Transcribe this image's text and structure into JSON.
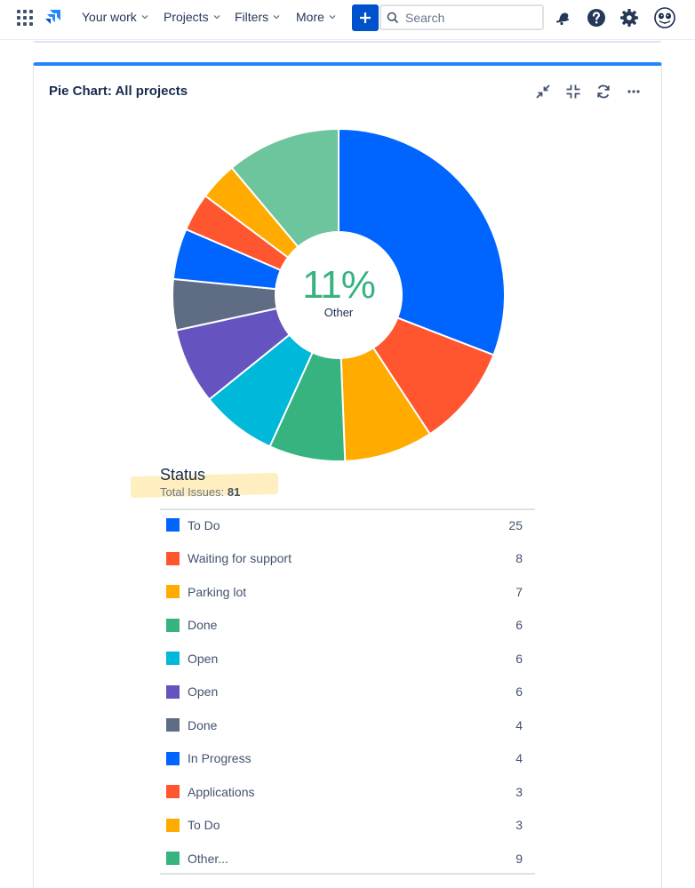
{
  "nav": {
    "your_work": "Your work",
    "projects": "Projects",
    "filters": "Filters",
    "more": "More",
    "search_placeholder": "Search"
  },
  "gadget": {
    "title": "Pie Chart: All projects",
    "center_percent": "11%",
    "center_label": "Other",
    "status_title": "Status",
    "total_label": "Total Issues:",
    "total_value": "81"
  },
  "chart_data": {
    "type": "pie",
    "categories": [
      "To Do",
      "Waiting for support",
      "Parking lot",
      "Done",
      "Open",
      "Open",
      "Done",
      "In Progress",
      "Applications",
      "To Do",
      "Other..."
    ],
    "values": [
      25,
      8,
      7,
      6,
      6,
      6,
      4,
      4,
      3,
      3,
      9
    ],
    "colors": [
      "#0065ff",
      "#ff5630",
      "#ffab00",
      "#36b37e",
      "#00b8d9",
      "#6554c0",
      "#5e6c84",
      "#0065ff",
      "#ff5630",
      "#ffab00",
      "#36b37e"
    ],
    "hover_color": "#6cc59c"
  },
  "legend": [
    {
      "label": "To Do",
      "count": "25",
      "color": "#0065ff"
    },
    {
      "label": "Waiting for support",
      "count": "8",
      "color": "#ff5630"
    },
    {
      "label": "Parking lot",
      "count": "7",
      "color": "#ffab00"
    },
    {
      "label": "Done",
      "count": "6",
      "color": "#36b37e"
    },
    {
      "label": "Open",
      "count": "6",
      "color": "#00b8d9"
    },
    {
      "label": "Open",
      "count": "6",
      "color": "#6554c0"
    },
    {
      "label": "Done",
      "count": "4",
      "color": "#5e6c84"
    },
    {
      "label": "In Progress",
      "count": "4",
      "color": "#0065ff"
    },
    {
      "label": "Applications",
      "count": "3",
      "color": "#ff5630"
    },
    {
      "label": "To Do",
      "count": "3",
      "color": "#ffab00"
    },
    {
      "label": "Other...",
      "count": "9",
      "color": "#36b37e"
    }
  ],
  "icons": {
    "app_switcher": "grid-icon",
    "logo": "jira-logo-icon",
    "create": "plus-icon",
    "search": "search-icon",
    "notifications": "bell-icon",
    "help": "help-icon",
    "settings": "gear-icon",
    "profile": "avatar-icon",
    "minimize": "minimize-icon",
    "collapse": "collapse-icon",
    "refresh": "refresh-icon",
    "more": "more-icon"
  }
}
